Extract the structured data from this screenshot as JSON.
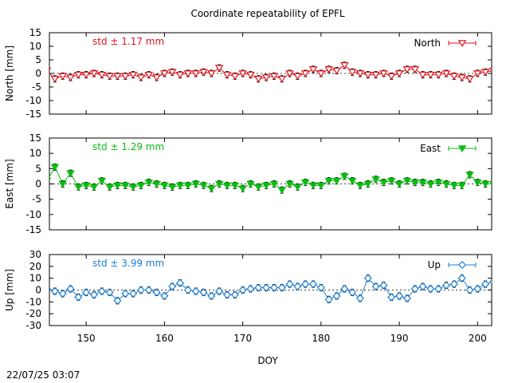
{
  "title": "Coordinate repeatability of EPFL",
  "footer_timestamp": "22/07/25 03:07",
  "chart_data": {
    "type": "line",
    "title": "Coordinate repeatability of EPFL",
    "x": [
      145,
      146,
      147,
      148,
      149,
      150,
      151,
      152,
      153,
      154,
      155,
      156,
      157,
      158,
      159,
      160,
      161,
      162,
      163,
      164,
      165,
      166,
      167,
      168,
      169,
      170,
      171,
      172,
      173,
      174,
      175,
      176,
      177,
      178,
      179,
      180,
      181,
      182,
      183,
      184,
      185,
      186,
      187,
      188,
      189,
      190,
      191,
      192,
      193,
      194,
      195,
      196,
      197,
      198,
      199,
      200,
      201,
      202
    ],
    "xticks": [
      150,
      160,
      170,
      180,
      190,
      200
    ],
    "xlabel": "DOY",
    "xlim": [
      145.3,
      201.8
    ],
    "grid": false,
    "panels": [
      {
        "name": "north",
        "ylabel": "North [mm]",
        "ylim": [
          -15,
          15
        ],
        "yticks": [
          -15,
          -10,
          -5,
          0,
          5,
          10,
          15
        ],
        "std_text": "std ± 1.17 mm",
        "legend": "North",
        "legend_position": "top-right",
        "color": "#e0141b",
        "marker": "triangle-down-open",
        "values": [
          1,
          -2,
          -1,
          -1.5,
          -0.5,
          -0.5,
          0,
          -0.5,
          -1,
          -1,
          -1,
          -0.5,
          -1.5,
          -0.5,
          -1.5,
          0,
          0.5,
          -0.5,
          0,
          0,
          0.5,
          0,
          2,
          -0.5,
          -1,
          0,
          -0.5,
          -2,
          -1.5,
          -1,
          -2,
          0,
          -1,
          0,
          1.5,
          0,
          1.5,
          1,
          3,
          0.5,
          0,
          -0.5,
          -0.5,
          0,
          -1,
          0,
          1.5,
          1.5,
          -0.5,
          -0.5,
          -0.5,
          0,
          -1,
          -1.5,
          -2,
          0,
          0.5,
          1
        ]
      },
      {
        "name": "east",
        "ylabel": "East [mm]",
        "ylim": [
          -15,
          15
        ],
        "yticks": [
          -15,
          -10,
          -5,
          0,
          5,
          10,
          15
        ],
        "std_text": "std ± 1.29 mm",
        "legend": "East",
        "legend_position": "top-right",
        "color": "#0cbb12",
        "marker": "triangle-down-filled",
        "values": [
          1,
          5.5,
          0,
          3.5,
          -1,
          -0.5,
          -1,
          1,
          -1,
          -0.5,
          -0.5,
          -1,
          -0.5,
          0.5,
          0,
          -0.5,
          -1,
          -0.5,
          -0.5,
          0,
          -0.5,
          -1.5,
          0,
          -0.5,
          -0.5,
          -1.5,
          0,
          -1,
          -0.5,
          0,
          -2,
          0,
          -1,
          0.5,
          -0.5,
          -0.5,
          1,
          1,
          2.5,
          1,
          -0.5,
          0,
          1.5,
          0.5,
          1,
          0,
          1,
          0.5,
          0.5,
          0,
          0.5,
          0,
          -0.5,
          -0.5,
          3,
          0.5,
          0,
          0
        ]
      },
      {
        "name": "up",
        "ylabel": "Up [mm]",
        "ylim": [
          -30,
          30
        ],
        "yticks": [
          -30,
          -20,
          -10,
          0,
          10,
          20,
          30
        ],
        "std_text": "std ± 3.99 mm",
        "legend": "Up",
        "legend_position": "top-right",
        "color": "#1a7fd6",
        "marker": "diamond-open",
        "values": [
          1,
          -1,
          -3,
          1,
          -6,
          -2,
          -4,
          -1,
          -2,
          -9,
          -3,
          -3,
          0,
          0,
          -2,
          -5,
          3,
          6,
          0,
          -1,
          -2,
          -5,
          -1,
          -4,
          -4,
          0,
          1,
          2,
          2,
          2,
          2,
          5,
          3,
          5,
          5,
          2,
          -8,
          -5,
          1,
          -2,
          -7,
          10,
          3,
          4,
          -6,
          -5,
          -7,
          1,
          3,
          1,
          1,
          4,
          5,
          10,
          0,
          1,
          5,
          7
        ]
      }
    ]
  }
}
